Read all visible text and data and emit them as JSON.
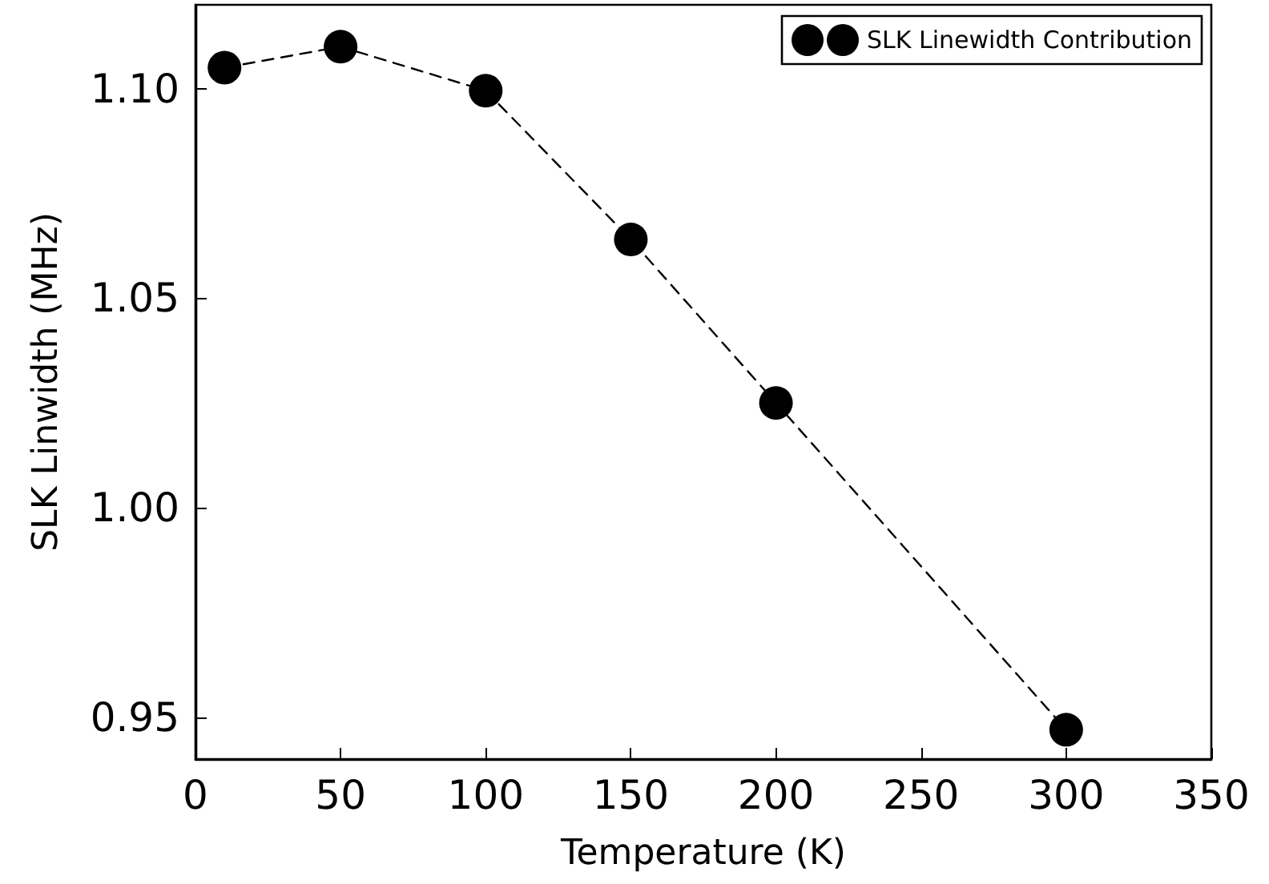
{
  "chart_data": {
    "type": "line",
    "xlabel": "Temperature (K)",
    "ylabel": "SLK Linwidth (MHz)",
    "x": [
      10,
      50,
      100,
      150,
      200,
      300
    ],
    "series": [
      {
        "name": "SLK Linewidth Contribution",
        "color": "#000000",
        "values": [
          1.105,
          1.11,
          1.0995,
          1.064,
          1.025,
          0.947
        ]
      }
    ],
    "xlim": [
      0,
      350
    ],
    "xticks": [
      0,
      50,
      100,
      150,
      200,
      250,
      300,
      350
    ],
    "ylim": [
      0.94,
      1.12
    ],
    "yticks": [
      {
        "value": 0.95,
        "label": "0.95"
      },
      {
        "value": 1.0,
        "label": "1.00"
      },
      {
        "value": 1.05,
        "label": "1.05"
      },
      {
        "value": 1.1,
        "label": "1.10"
      }
    ],
    "grid": false,
    "legend": "top right",
    "marker": "circle",
    "line_style": "dashed"
  }
}
